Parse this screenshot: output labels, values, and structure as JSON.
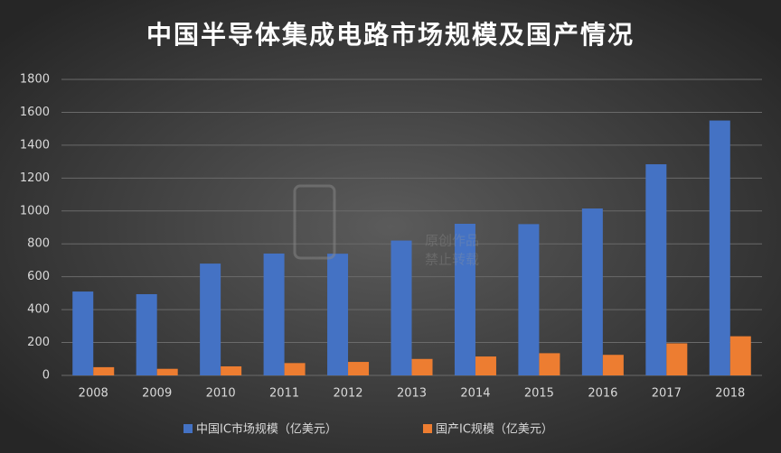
{
  "chart_data": {
    "type": "bar",
    "title": "中国半导体集成电路市场规模及国产情况",
    "categories": [
      "2008",
      "2009",
      "2010",
      "2011",
      "2012",
      "2013",
      "2014",
      "2015",
      "2016",
      "2017",
      "2018"
    ],
    "series": [
      {
        "name": "中国IC市场规模（亿美元）",
        "color": "#4472c4",
        "values": [
          510,
          494,
          680,
          741,
          740,
          820,
          922,
          920,
          1015,
          1284,
          1550
        ]
      },
      {
        "name": "国产IC规模（亿美元）",
        "color": "#ed7d31",
        "values": [
          50,
          40,
          55,
          75,
          82,
          100,
          115,
          135,
          125,
          195,
          238
        ]
      }
    ],
    "ylim": [
      0,
      1800
    ],
    "yticks": [
      0,
      200,
      400,
      600,
      800,
      1000,
      1200,
      1400,
      1600,
      1800
    ],
    "grid": true,
    "watermark": [
      "原创作品",
      "禁止转载"
    ]
  }
}
